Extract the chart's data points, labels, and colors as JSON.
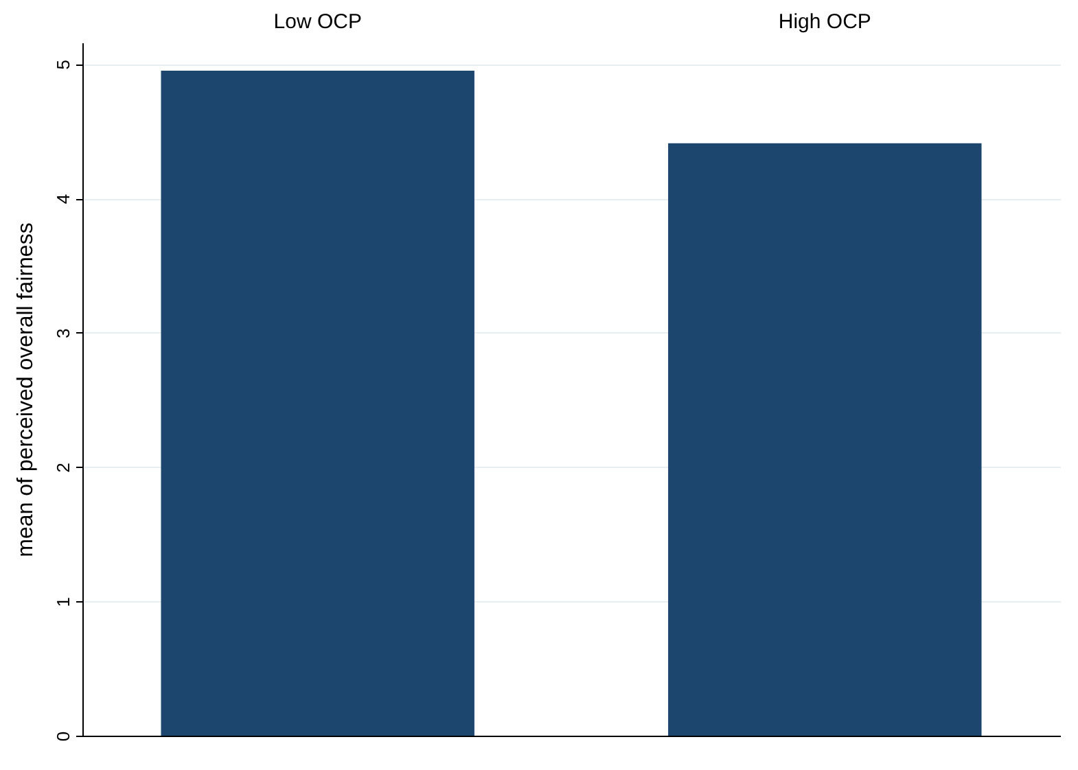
{
  "chart_data": {
    "type": "bar",
    "categories": [
      "Low OCP",
      "High OCP"
    ],
    "values": [
      4.95,
      4.41
    ],
    "color": "#1c466d",
    "ylabel": "mean of perceived overall fairness",
    "ylim": [
      0,
      5.16
    ],
    "yticks": [
      0,
      1,
      2,
      3,
      4,
      5
    ],
    "grid": "y"
  }
}
